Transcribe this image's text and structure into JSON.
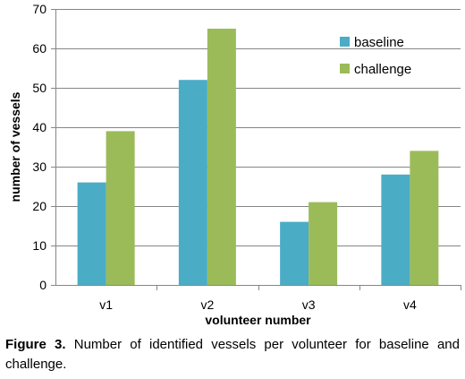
{
  "chart_data": {
    "type": "bar",
    "categories": [
      "v1",
      "v2",
      "v3",
      "v4"
    ],
    "series": [
      {
        "name": "baseline",
        "values": [
          26,
          52,
          16,
          28
        ],
        "color": "#4bacc6"
      },
      {
        "name": "challenge",
        "values": [
          39,
          65,
          21,
          34
        ],
        "color": "#9bbb59"
      }
    ],
    "xlabel": "volunteer number",
    "ylabel": "number of vessels",
    "ylim": [
      0,
      70
    ],
    "yticks": [
      0,
      10,
      20,
      30,
      40,
      50,
      60,
      70
    ],
    "grid": true,
    "legend_position": "top-right"
  },
  "caption": {
    "label": "Figure 3.",
    "text": " Number of identified vessels per volunteer for baseline and challenge."
  }
}
